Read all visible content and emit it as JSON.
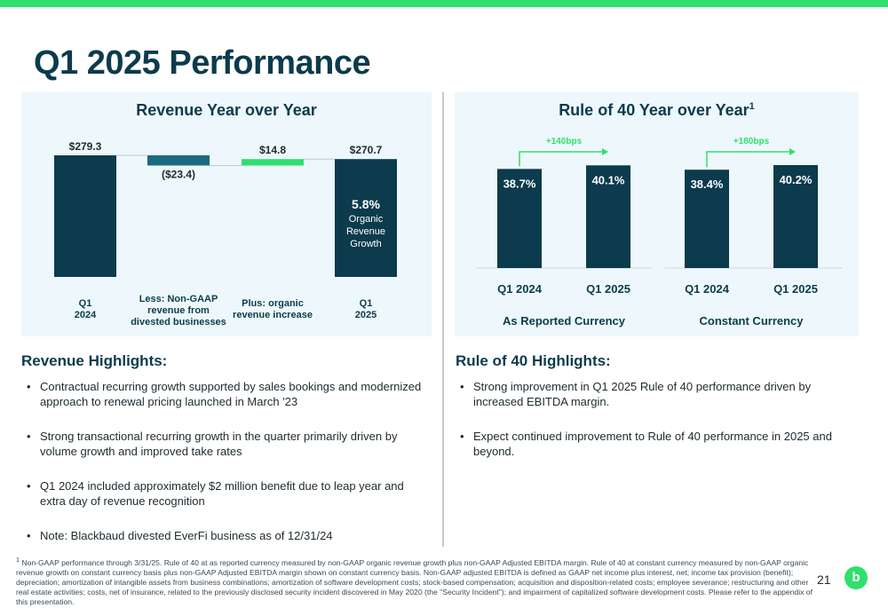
{
  "page": {
    "title": "Q1 2025 Performance",
    "page_number": "21",
    "logo_text": "b"
  },
  "colors": {
    "accent": "#2ee06e",
    "navy": "#0b3b4c",
    "teal": "#1b6a80",
    "panel": "#eef8fc"
  },
  "chart_data": [
    {
      "type": "bar",
      "subtype": "waterfall",
      "title": "Revenue Year over Year",
      "categories": [
        "Q1\n2024",
        "Less: Non-GAAP\nrevenue from\ndivested businesses",
        "Plus: organic\nrevenue increase",
        "Q1\n2025"
      ],
      "values": [
        279.3,
        -23.4,
        14.8,
        270.7
      ],
      "labels": [
        "$279.3",
        "($23.4)",
        "$14.8",
        "$270.7"
      ],
      "annotation": {
        "value": "5.8%",
        "text": "Organic\nRevenue\nGrowth"
      }
    },
    {
      "type": "bar",
      "title": "Rule of 40 Year over Year",
      "title_superscript": "1",
      "groups": [
        "As Reported Currency",
        "Constant Currency"
      ],
      "categories": [
        "Q1 2024",
        "Q1 2025",
        "Q1 2024",
        "Q1 2025"
      ],
      "values": [
        38.7,
        40.1,
        38.4,
        40.2
      ],
      "labels": [
        "38.7%",
        "40.1%",
        "38.4%",
        "40.2%"
      ],
      "changes": [
        "+140bps",
        "+180bps"
      ]
    }
  ],
  "revenue_highlights": {
    "title": "Revenue Highlights:",
    "items": [
      "Contractual recurring growth supported by sales bookings and modernized approach to renewal pricing launched in March '23",
      "Strong transactional recurring growth in the quarter primarily driven by volume growth and improved take rates",
      "Q1 2024 included approximately $2 million benefit due to leap year and extra day of revenue recognition",
      "Note: Blackbaud divested EverFi business as of 12/31/24"
    ]
  },
  "rule40_highlights": {
    "title": "Rule of 40 Highlights:",
    "items": [
      "Strong improvement in Q1 2025 Rule of 40 performance driven by increased EBITDA margin.",
      "Expect continued improvement to Rule of 40 performance in 2025 and beyond."
    ]
  },
  "footnote": {
    "marker": "1",
    "text": "Non-GAAP performance through 3/31/25. Rule of 40 at as reported currency measured by non-GAAP organic revenue growth plus non-GAAP Adjusted EBITDA margin. Rule of 40 at constant currency measured by non-GAAP organic revenue growth on constant currency basis plus non-GAAP Adjusted EBITDA margin shown on constant currency basis. Non-GAAP adjusted EBITDA is defined as GAAP net income plus interest, net; income tax provision (benefit); depreciation; amortization of intangible assets from business combinations; amortization of software development costs; stock-based compensation; acquisition and disposition-related costs; employee severance; restructuring and other real estate activities; costs, net of insurance, related to the previously disclosed security incident discovered in May 2020 (the \"Security Incident\"); and impairment of capitalized software development costs. Please refer to the appendix of this presentation."
  }
}
